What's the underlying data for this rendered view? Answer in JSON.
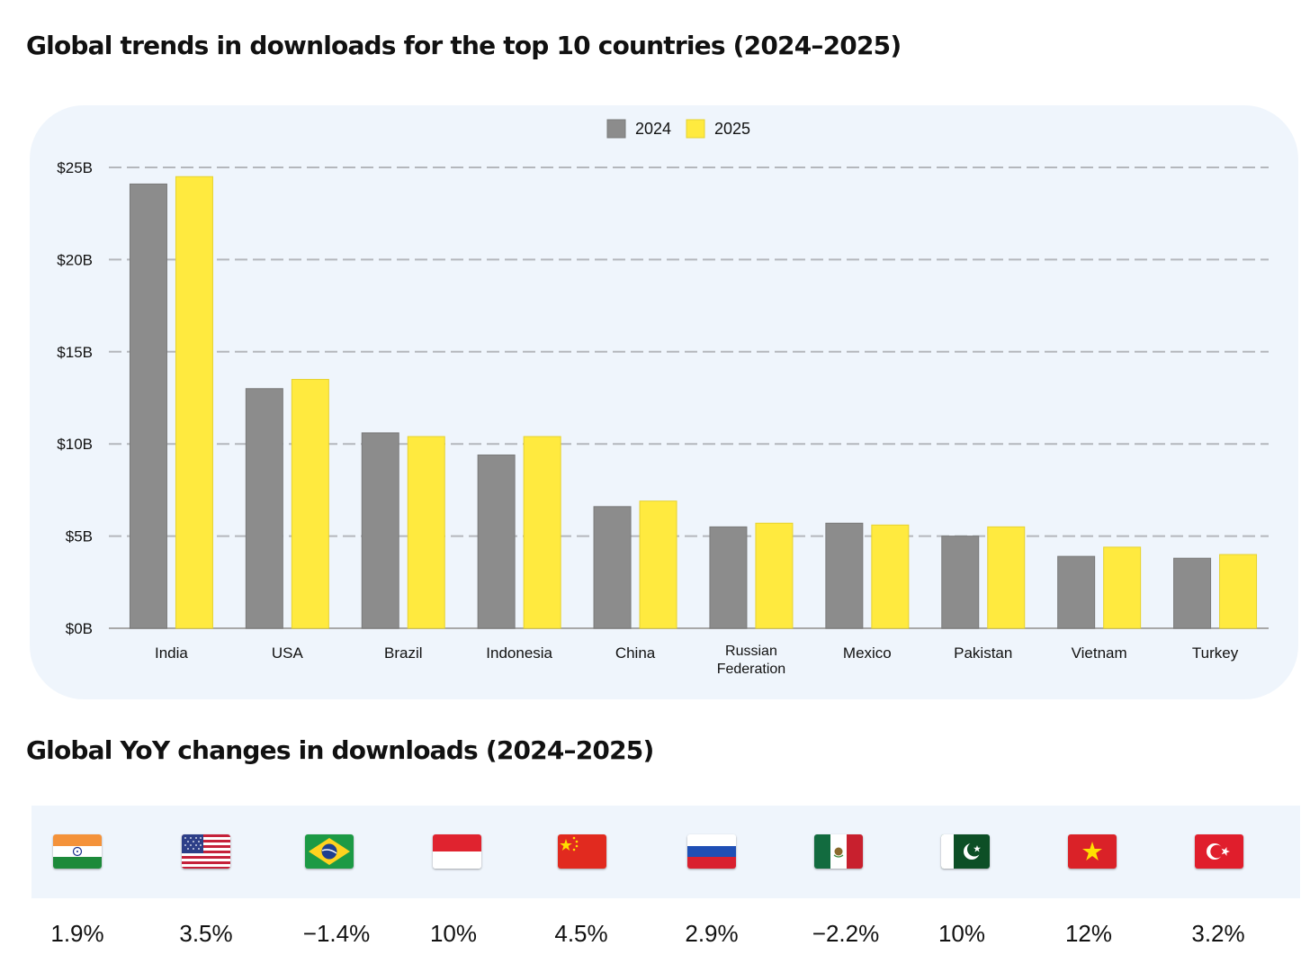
{
  "titles": {
    "chart": "Global trends in downloads for the top 10 countries (2024–2025)",
    "yoy": "Global YoY changes in downloads (2024–2025)"
  },
  "colors": {
    "series_2024": "#8c8c8c",
    "series_2025": "#ffea3f",
    "panel_background": "#eff5fc",
    "gridline": "#b4b7bc"
  },
  "chart_data": {
    "type": "bar",
    "title": "Global trends in downloads for the top 10 countries (2024–2025)",
    "categories": [
      "India",
      "USA",
      "Brazil",
      "Indonesia",
      "China",
      "Russian Federation",
      "Mexico",
      "Pakistan",
      "Vietnam",
      "Turkey"
    ],
    "series": [
      {
        "name": "2024",
        "values": [
          24.1,
          13.0,
          10.6,
          9.4,
          6.6,
          5.5,
          5.7,
          5.0,
          3.9,
          3.8
        ]
      },
      {
        "name": "2025",
        "values": [
          24.5,
          13.5,
          10.4,
          10.4,
          6.9,
          5.7,
          5.6,
          5.5,
          4.4,
          4.0
        ]
      }
    ],
    "ylim": [
      0,
      25
    ],
    "yticks": [
      0,
      5,
      10,
      15,
      20,
      25
    ],
    "ytick_labels": [
      "$0B",
      "$5B",
      "$10B",
      "$15B",
      "$20B",
      "$25B"
    ],
    "xlabel": "",
    "ylabel": "",
    "grid": true,
    "legend": "top-center"
  },
  "yoy": {
    "items": [
      {
        "country": "India",
        "flag": "india-flag-icon",
        "change": "1.9%"
      },
      {
        "country": "USA",
        "flag": "usa-flag-icon",
        "change": "3.5%"
      },
      {
        "country": "Brazil",
        "flag": "brazil-flag-icon",
        "change": "−1.4%"
      },
      {
        "country": "Indonesia",
        "flag": "indonesia-flag-icon",
        "change": "10%"
      },
      {
        "country": "China",
        "flag": "china-flag-icon",
        "change": "4.5%"
      },
      {
        "country": "Russian Federation",
        "flag": "russia-flag-icon",
        "change": "2.9%"
      },
      {
        "country": "Mexico",
        "flag": "mexico-flag-icon",
        "change": "−2.2%"
      },
      {
        "country": "Pakistan",
        "flag": "pakistan-flag-icon",
        "change": "10%"
      },
      {
        "country": "Vietnam",
        "flag": "vietnam-flag-icon",
        "change": "12%"
      },
      {
        "country": "Turkey",
        "flag": "turkey-flag-icon",
        "change": "3.2%"
      }
    ]
  }
}
